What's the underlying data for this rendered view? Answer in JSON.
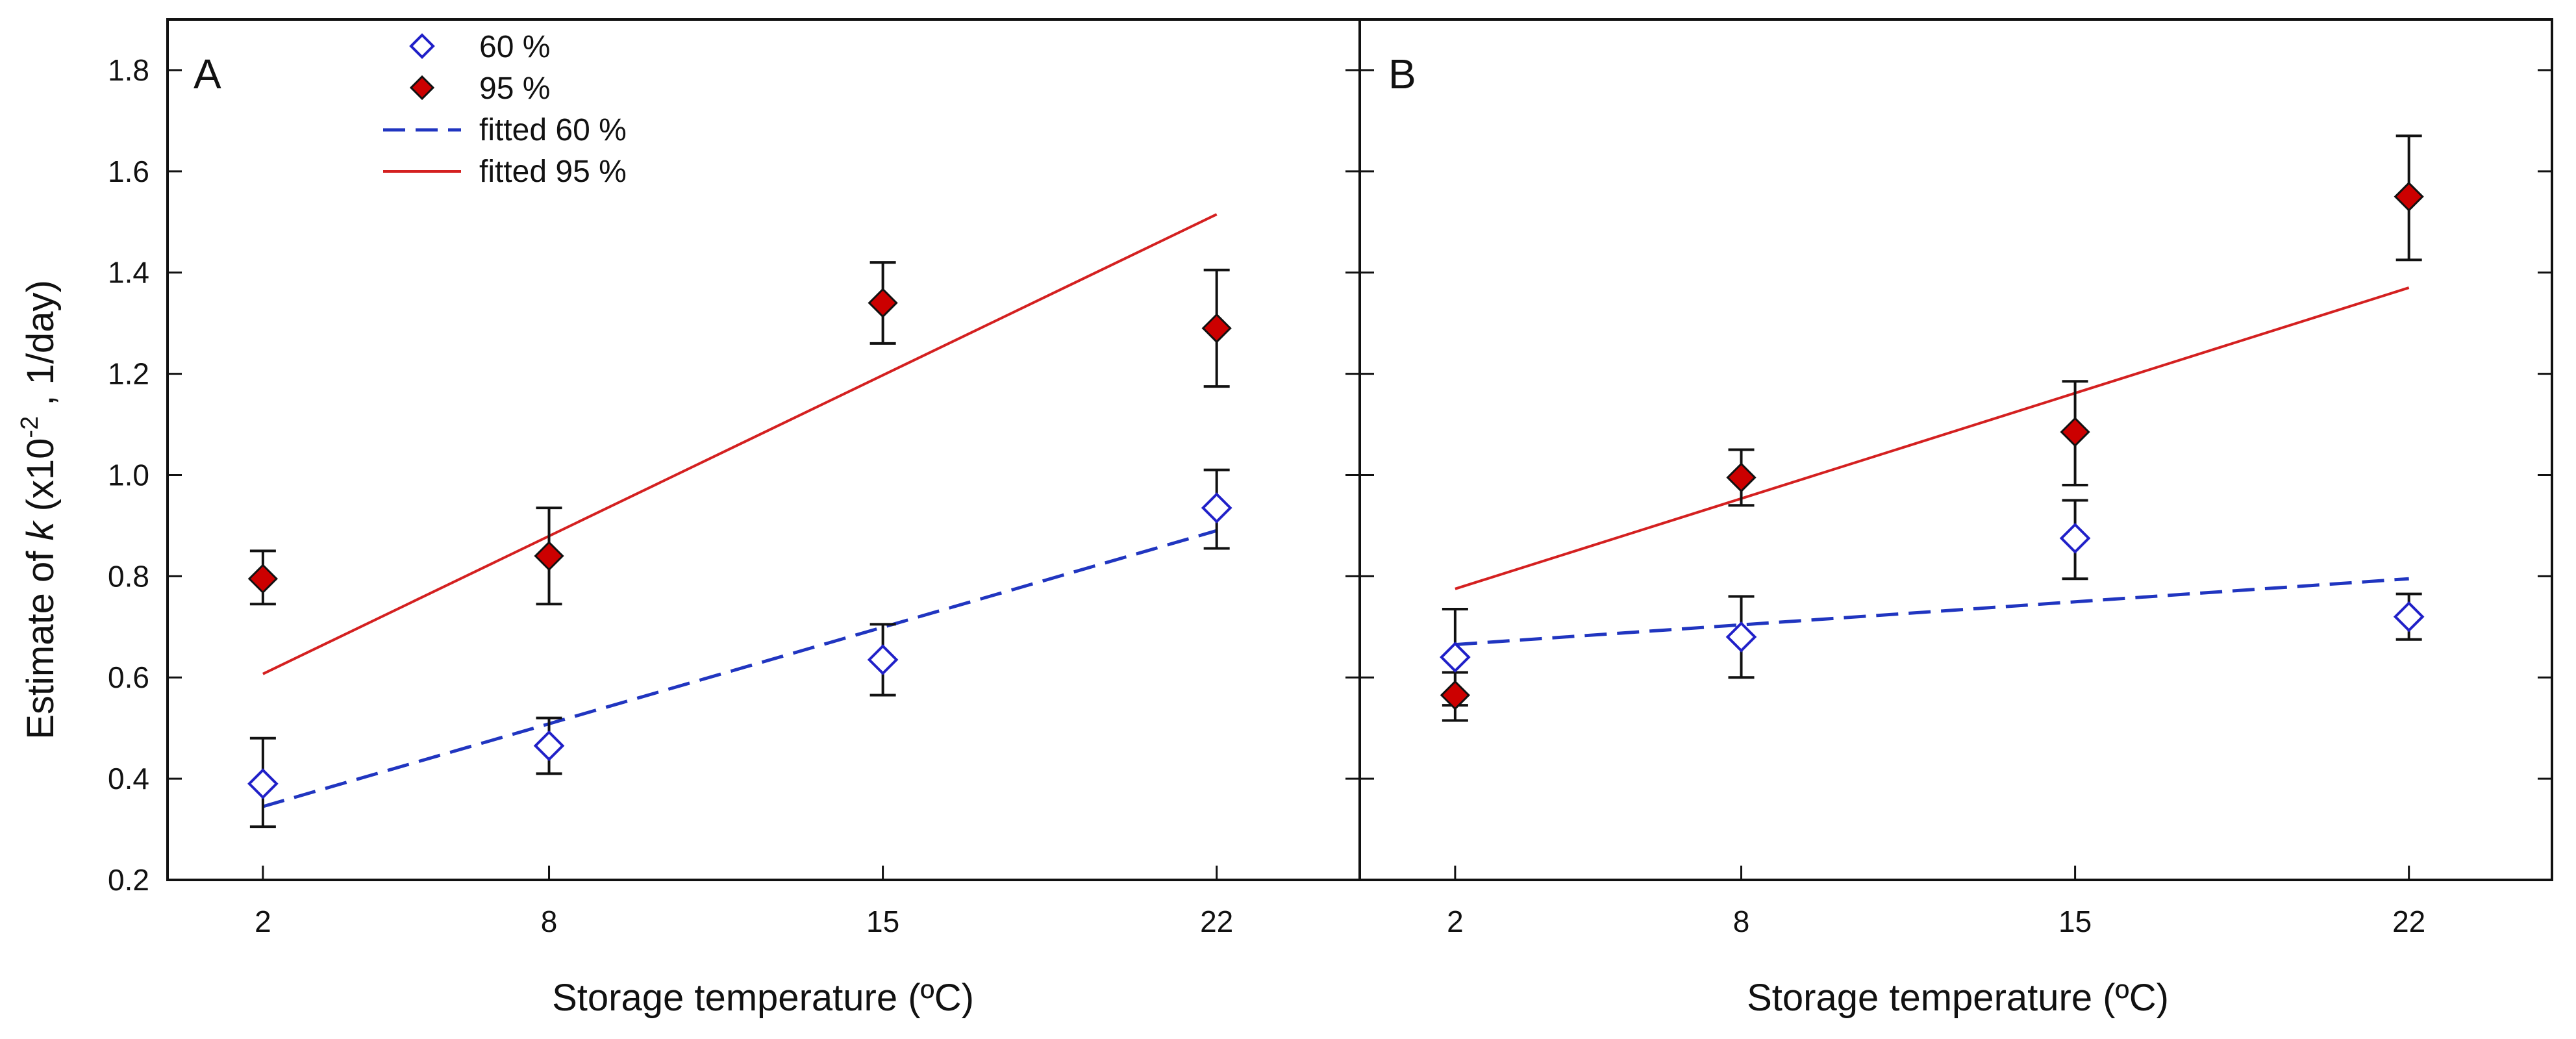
{
  "chart_data": {
    "type": "scatter",
    "ylabel_parts": [
      "Estimate of ",
      "k",
      " (x10",
      "-2",
      " , 1/day)"
    ],
    "ylim": [
      0.2,
      1.9
    ],
    "yticks": [
      0.2,
      0.4,
      0.6,
      0.8,
      1.0,
      1.2,
      1.4,
      1.6,
      1.8
    ],
    "ytick_labels": [
      "0.2",
      "0.4",
      "0.6",
      "0.8",
      "1.0",
      "1.2",
      "1.4",
      "1.6",
      "1.8"
    ],
    "xlim": [
      0,
      25
    ],
    "x": [
      2,
      8,
      15,
      22
    ],
    "xtick_labels": [
      "2",
      "8",
      "15",
      "22"
    ],
    "xlabel": "Storage temperature (ºC)",
    "legend": {
      "location": "top-left of panel A",
      "entries": [
        "60 %",
        "95 %",
        "fitted 60 %",
        "fitted 95 %"
      ]
    },
    "colors": {
      "marker_60": "#2020c8",
      "marker_95": "#cc0000",
      "marker_95_edge": "#111111",
      "line_60": "#2035c0",
      "line_95": "#d42020",
      "error_bar": "#111111",
      "axis": "#111111"
    },
    "panels": [
      {
        "label": "A",
        "series": [
          {
            "name": "60 %",
            "marker": "open-diamond",
            "values": [
              0.39,
              0.465,
              0.635,
              0.935
            ],
            "lower": [
              0.305,
              0.41,
              0.565,
              0.855
            ],
            "upper": [
              0.48,
              0.52,
              0.705,
              1.01
            ]
          },
          {
            "name": "95 %",
            "marker": "filled-diamond",
            "values": [
              0.795,
              0.84,
              1.34,
              1.29
            ],
            "lower": [
              0.745,
              0.745,
              1.26,
              1.175
            ],
            "upper": [
              0.85,
              0.935,
              1.42,
              1.405
            ]
          }
        ],
        "fits": [
          {
            "name": "fitted 60 %",
            "style": "dashed",
            "x": [
              2,
              22
            ],
            "y": [
              0.345,
              0.89
            ]
          },
          {
            "name": "fitted 95 %",
            "style": "solid",
            "x": [
              2,
              22
            ],
            "y": [
              0.607,
              1.515
            ]
          }
        ]
      },
      {
        "label": "B",
        "series": [
          {
            "name": "60 %",
            "marker": "open-diamond",
            "values": [
              0.64,
              0.68,
              0.875,
              0.72
            ],
            "lower": [
              0.545,
              0.6,
              0.795,
              0.675
            ],
            "upper": [
              0.735,
              0.76,
              0.95,
              0.765
            ]
          },
          {
            "name": "95 %",
            "marker": "filled-diamond",
            "values": [
              0.565,
              0.995,
              1.085,
              1.55
            ],
            "lower": [
              0.515,
              0.94,
              0.98,
              1.425
            ],
            "upper": [
              0.61,
              1.05,
              1.185,
              1.67
            ]
          }
        ],
        "fits": [
          {
            "name": "fitted 60 %",
            "style": "dashed",
            "x": [
              2,
              22
            ],
            "y": [
              0.665,
              0.795
            ]
          },
          {
            "name": "fitted 95 %",
            "style": "solid",
            "x": [
              2,
              22
            ],
            "y": [
              0.775,
              1.37
            ]
          }
        ]
      }
    ]
  }
}
